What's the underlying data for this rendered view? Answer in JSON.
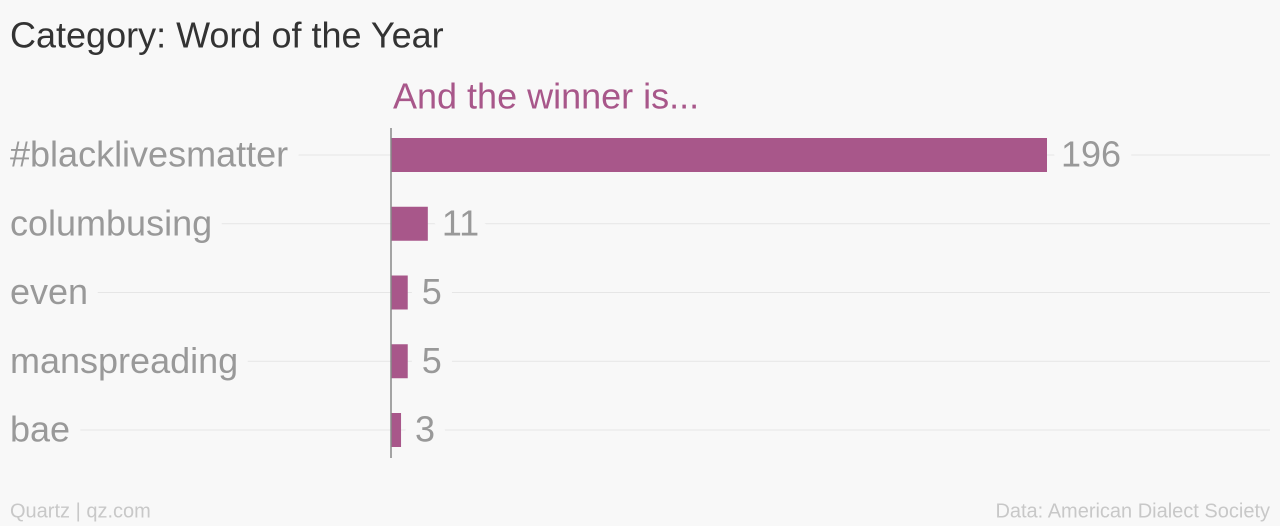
{
  "chart_data": {
    "type": "bar",
    "orientation": "horizontal",
    "title": "Category: Word of the Year",
    "annotation": "And the winner is...",
    "categories": [
      "#blacklivesmatter",
      "columbusing",
      "even",
      "manspreading",
      "bae"
    ],
    "values": [
      196,
      11,
      5,
      5,
      3
    ],
    "color": "#a8578a",
    "xlim": [
      0,
      196
    ],
    "footer": "Quartz | qz.com",
    "source": "Data: American Dialect Society"
  }
}
